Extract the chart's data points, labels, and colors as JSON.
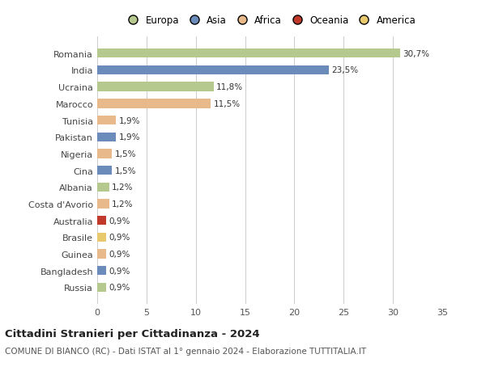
{
  "categories": [
    "Romania",
    "India",
    "Ucraina",
    "Marocco",
    "Tunisia",
    "Pakistan",
    "Nigeria",
    "Cina",
    "Albania",
    "Costa d'Avorio",
    "Australia",
    "Brasile",
    "Guinea",
    "Bangladesh",
    "Russia"
  ],
  "values": [
    30.7,
    23.5,
    11.8,
    11.5,
    1.9,
    1.9,
    1.5,
    1.5,
    1.2,
    1.2,
    0.9,
    0.9,
    0.9,
    0.9,
    0.9
  ],
  "labels": [
    "30,7%",
    "23,5%",
    "11,8%",
    "11,5%",
    "1,9%",
    "1,9%",
    "1,5%",
    "1,5%",
    "1,2%",
    "1,2%",
    "0,9%",
    "0,9%",
    "0,9%",
    "0,9%",
    "0,9%"
  ],
  "colors": [
    "#b5c98e",
    "#6b8cba",
    "#b5c98e",
    "#e8b98a",
    "#e8b98a",
    "#6b8cba",
    "#e8b98a",
    "#6b8cba",
    "#b5c98e",
    "#e8b98a",
    "#c0392b",
    "#e8c96e",
    "#e8b98a",
    "#6b8cba",
    "#b5c98e"
  ],
  "legend_labels": [
    "Europa",
    "Asia",
    "Africa",
    "Oceania",
    "America"
  ],
  "legend_colors": [
    "#b5c98e",
    "#6b8cba",
    "#e8b98a",
    "#c0392b",
    "#e8c96e"
  ],
  "title": "Cittadini Stranieri per Cittadinanza - 2024",
  "subtitle": "COMUNE DI BIANCO (RC) - Dati ISTAT al 1° gennaio 2024 - Elaborazione TUTTITALIA.IT",
  "xlim": [
    0,
    35
  ],
  "xticks": [
    0,
    5,
    10,
    15,
    20,
    25,
    30,
    35
  ],
  "background_color": "#ffffff",
  "grid_color": "#cccccc"
}
